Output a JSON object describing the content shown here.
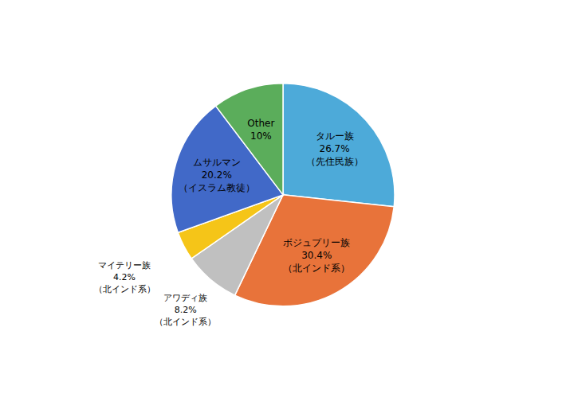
{
  "chart_data": {
    "type": "pie",
    "categories": [
      "タルー族\n26.7%\n（先住民族）",
      "ボジュプリー族\n30.4%\n（北インド系）",
      "アワディ族\n8.2%\n（北インド系）",
      "マイテリー族\n4.2%\n（北インド系）",
      "ムサルマン\n20.2%\n（イスラム教徒）",
      "Other\n10%"
    ],
    "values": [
      26.7,
      30.4,
      8.2,
      4.2,
      20.2,
      10.3
    ],
    "colors": [
      "#4DAAD9",
      "#E8733A",
      "#C0C0C0",
      "#F5C518",
      "#4169C8",
      "#5BAD5B"
    ]
  }
}
